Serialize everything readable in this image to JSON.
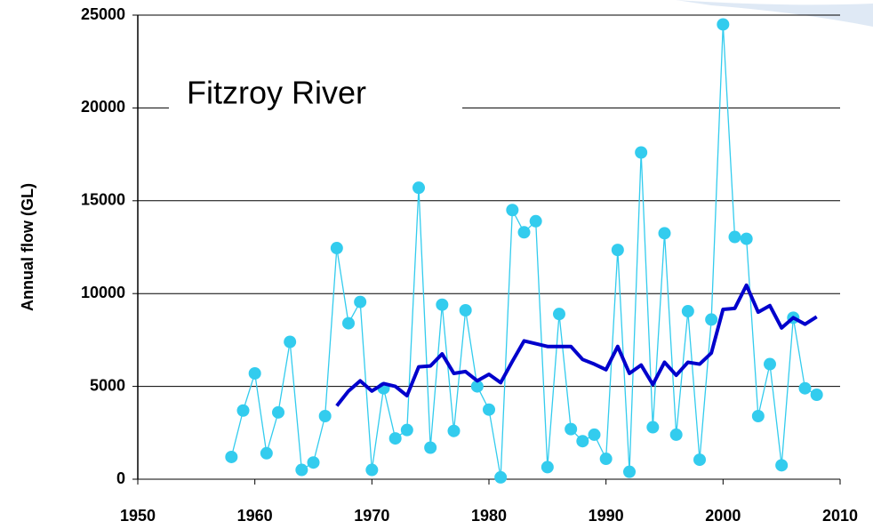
{
  "chart_data": {
    "type": "line",
    "title": "Fitzroy River",
    "y_label": "Annual flow (GL)",
    "x": [
      1958,
      1959,
      1960,
      1961,
      1962,
      1963,
      1964,
      1965,
      1966,
      1967,
      1968,
      1969,
      1970,
      1971,
      1972,
      1973,
      1974,
      1975,
      1976,
      1977,
      1978,
      1979,
      1980,
      1981,
      1982,
      1983,
      1984,
      1985,
      1986,
      1987,
      1988,
      1989,
      1990,
      1991,
      1992,
      1993,
      1994,
      1995,
      1996,
      1997,
      1998,
      1999,
      2000,
      2001,
      2002,
      2003,
      2004,
      2005,
      2006,
      2007,
      2008
    ],
    "series": [
      {
        "color": "#33ccee",
        "markers": true,
        "values": [
          1200,
          3700,
          5700,
          1400,
          3600,
          7400,
          500,
          900,
          3400,
          12450,
          8400,
          9550,
          500,
          4900,
          2200,
          2650,
          15700,
          1700,
          9400,
          2600,
          9100,
          5000,
          3750,
          100,
          14500,
          13300,
          13900,
          650,
          8900,
          2700,
          2050,
          2400,
          1100,
          12350,
          400,
          17600,
          2800,
          13250,
          2400,
          9050,
          1050,
          8600,
          24500,
          13050,
          12950,
          3400,
          6200,
          750,
          8700,
          4900,
          4550
        ]
      },
      {
        "color": "#0000cc",
        "markers": false,
        "values": [
          null,
          null,
          null,
          null,
          null,
          null,
          null,
          null,
          null,
          3950,
          4750,
          5300,
          4750,
          5150,
          5000,
          4500,
          6050,
          6100,
          6750,
          5700,
          5800,
          5300,
          5650,
          5200,
          6350,
          7450,
          7300,
          7150,
          7150,
          7150,
          6450,
          6200,
          5900,
          7150,
          5700,
          6150,
          5100,
          6300,
          5600,
          6300,
          6200,
          6800,
          9150,
          9200,
          10450,
          9000,
          9350,
          8150,
          8700,
          8350,
          8750
        ]
      }
    ],
    "xlim": [
      1950,
      2010
    ],
    "xticks": [
      1950,
      1960,
      1970,
      1980,
      1990,
      2000,
      2010
    ],
    "ylim": [
      0,
      25000
    ],
    "yticks": [
      0,
      5000,
      10000,
      15000,
      20000,
      25000
    ],
    "grid": true
  }
}
